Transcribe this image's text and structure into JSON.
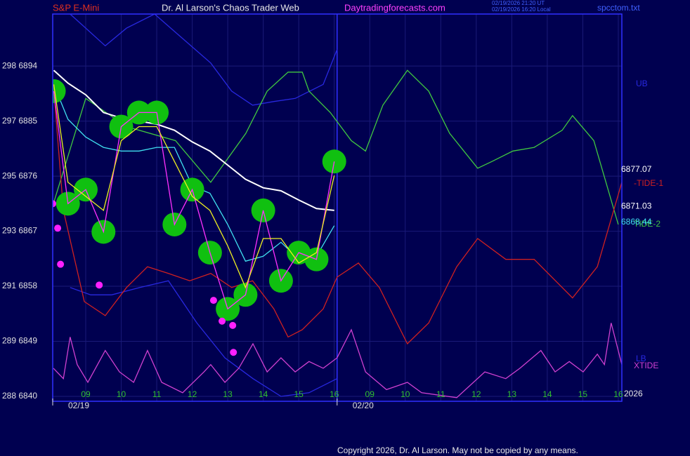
{
  "chart_data": {
    "type": "line",
    "header": {
      "symbol": "S&P E-Mini",
      "title": "Dr. Al Larson's Chaos Trader Web",
      "site": "Daytradingforecasts.com",
      "time_ut": "02/19/2026 21:20 UT",
      "time_local": "02/19/2026 16:20 Local",
      "file": "spcctom.txt"
    },
    "copyright": "Copyright 2026, Dr. Al Larson. May not be copied by any means.",
    "year_label": "2026",
    "xlim": [
      0.07,
      16.1
    ],
    "ylim": [
      6839.2,
      6902.5
    ],
    "grid": true,
    "yticks": [
      {
        "value": 6840,
        "label": "288 6840"
      },
      {
        "value": 6849,
        "label": "289 6849"
      },
      {
        "value": 6858,
        "label": "291 6858"
      },
      {
        "value": 6867,
        "label": "293 6867"
      },
      {
        "value": 6876,
        "label": "295 6876"
      },
      {
        "value": 6885,
        "label": "297 6885"
      },
      {
        "value": 6894,
        "label": "298 6894"
      }
    ],
    "xticks": [
      {
        "value": 1,
        "label": "09"
      },
      {
        "value": 2,
        "label": "10"
      },
      {
        "value": 3,
        "label": "11"
      },
      {
        "value": 4,
        "label": "12"
      },
      {
        "value": 5,
        "label": "13"
      },
      {
        "value": 6,
        "label": "14"
      },
      {
        "value": 7,
        "label": "15"
      },
      {
        "value": 8,
        "label": "16"
      },
      {
        "value": 9,
        "label": "09"
      },
      {
        "value": 10,
        "label": "10"
      },
      {
        "value": 11,
        "label": "11"
      },
      {
        "value": 12,
        "label": "12"
      },
      {
        "value": 13,
        "label": "13"
      },
      {
        "value": 14,
        "label": "14"
      },
      {
        "value": 15,
        "label": "15"
      },
      {
        "value": 16,
        "label": "16"
      }
    ],
    "date_ticks": [
      {
        "value": 0.07,
        "label": "02/19"
      },
      {
        "value": 8.08,
        "label": "02/20"
      }
    ],
    "series": [
      {
        "name": "UB",
        "color": "#2828e0",
        "x": [
          0.56,
          1.55,
          2.15,
          2.94,
          4.52,
          5.11,
          5.7,
          6.3,
          6.9,
          7.69,
          8.08
        ],
        "values": [
          6902.5,
          6897.3,
          6900.2,
          6902.5,
          6894.5,
          6889.9,
          6887.6,
          6888.2,
          6888.7,
          6891.0,
          6896.7
        ]
      },
      {
        "name": "LB",
        "color": "#2828e0",
        "x": [
          0.56,
          1.14,
          1.73,
          2.53,
          3.33,
          4.13,
          4.92,
          5.71,
          6.5,
          7.29,
          8.08
        ],
        "values": [
          6857.8,
          6856.6,
          6856.6,
          6857.8,
          6858.9,
          6852.0,
          6846.3,
          6842.9,
          6840.0,
          6840.6,
          6842.9
        ]
      },
      {
        "name": "TIDE-2",
        "color": "#40c840",
        "x": [
          0.09,
          1,
          2.15,
          3.53,
          4.52,
          5.51,
          6.11,
          6.7,
          7.1,
          7.29,
          7.89,
          8.48,
          8.88,
          9.37,
          10.06,
          10.66,
          11.25,
          12.04,
          12.44,
          13.03,
          13.63,
          14.42,
          14.71,
          15.31,
          16.0
        ],
        "values": [
          6871.5,
          6888.7,
          6884.1,
          6881.8,
          6875.0,
          6883.0,
          6889.9,
          6893.0,
          6893.0,
          6889.9,
          6886.4,
          6881.8,
          6880.1,
          6887.6,
          6893.3,
          6889.9,
          6883.0,
          6877.3,
          6878.4,
          6880.1,
          6880.7,
          6883.5,
          6885.9,
          6881.8,
          6868.1
        ]
      },
      {
        "name": "-TIDE-1",
        "color": "#d02020",
        "x": [
          0.09,
          0.37,
          0.96,
          1.55,
          2.15,
          2.74,
          3.33,
          3.93,
          4.52,
          5.11,
          5.7,
          6.3,
          6.7,
          7.1,
          7.69,
          8.08,
          8.68,
          9.27,
          10.06,
          10.66,
          11.45,
          12.04,
          12.83,
          13.63,
          14.42,
          14.71,
          15.41,
          16.1
        ],
        "values": [
          6891.0,
          6870.4,
          6855.5,
          6853.2,
          6857.8,
          6861.2,
          6860.1,
          6858.9,
          6860.1,
          6857.8,
          6858.9,
          6854.3,
          6849.7,
          6850.9,
          6854.3,
          6859.5,
          6861.8,
          6857.8,
          6848.6,
          6852.0,
          6861.2,
          6865.8,
          6862.4,
          6862.4,
          6857.8,
          6856.1,
          6861.2,
          6875.0
        ]
      },
      {
        "name": "XTIDE",
        "color": "#d040d0",
        "x": [
          0.09,
          0.37,
          0.56,
          0.76,
          1.06,
          1.55,
          1.95,
          2.35,
          2.74,
          3.14,
          3.73,
          4.33,
          4.52,
          4.92,
          5.31,
          5.71,
          6.11,
          6.5,
          6.9,
          7.29,
          7.69,
          8.08,
          8.48,
          8.88,
          9.47,
          10.06,
          10.46,
          11.45,
          12.24,
          12.83,
          13.23,
          13.82,
          14.22,
          14.62,
          15.01,
          15.41,
          15.61,
          15.8,
          16.1
        ],
        "values": [
          6844.6,
          6842.9,
          6849.7,
          6845.2,
          6842.3,
          6847.5,
          6844.0,
          6842.3,
          6847.5,
          6842.3,
          6840.6,
          6844.0,
          6845.2,
          6842.3,
          6844.6,
          6848.6,
          6844.0,
          6846.3,
          6844.0,
          6845.7,
          6844.6,
          6846.3,
          6850.9,
          6844.0,
          6841.1,
          6842.3,
          6840.6,
          6839.8,
          6844.0,
          6842.9,
          6844.6,
          6847.5,
          6844.0,
          6845.7,
          6844.0,
          6846.9,
          6845.2,
          6852.0,
          6845.2
        ]
      },
      {
        "color": "#ffffff",
        "last_value": 6871.03,
        "x": [
          0.1,
          0.5,
          1,
          1.5,
          2,
          2.5,
          3,
          3.5,
          4,
          4.5,
          5,
          5.5,
          6,
          6.5,
          7,
          7.5,
          8
        ],
        "values": [
          6893.3,
          6891.2,
          6889.3,
          6886.4,
          6885.5,
          6885.0,
          6884.5,
          6883.5,
          6881.6,
          6880.1,
          6877.8,
          6875.5,
          6874.1,
          6873.6,
          6872.1,
          6870.7,
          6870.4
        ]
      },
      {
        "color": "#40e0f0",
        "last_value": 6868.44,
        "x": [
          0.1,
          0.5,
          1,
          1.5,
          2,
          2.5,
          3,
          3.5,
          4,
          4.5,
          5,
          5.5,
          6,
          6.5,
          7,
          7.5,
          8
        ],
        "values": [
          6891.0,
          6885.3,
          6882.4,
          6880.7,
          6880.1,
          6880.1,
          6880.7,
          6880.7,
          6874.4,
          6873.2,
          6868.1,
          6862.1,
          6862.9,
          6865.2,
          6862.4,
          6862.9,
          6867.9
        ]
      },
      {
        "color": "#ff30ff",
        "glow": "#10c010",
        "last_value": 6877.07,
        "x": [
          0.1,
          0.5,
          1,
          1.5,
          2,
          2.5,
          3,
          3.5,
          4,
          4.5,
          5,
          5.5,
          6,
          6.5,
          7,
          7.5,
          8
        ],
        "values": [
          6889.9,
          6871.5,
          6873.8,
          6866.9,
          6884.1,
          6886.4,
          6886.4,
          6868.1,
          6873.8,
          6863.5,
          6854.3,
          6856.6,
          6870.4,
          6858.9,
          6863.5,
          6862.4,
          6878.4
        ]
      },
      {
        "color": "#f0f020",
        "x": [
          0.1,
          0.5,
          1,
          1.5,
          2,
          2.5,
          3,
          3.5,
          4,
          4.5,
          5,
          5.5,
          6,
          6.5,
          7,
          7.5,
          8
        ],
        "values": [
          6891.0,
          6875.0,
          6872.7,
          6870.4,
          6881.8,
          6884.1,
          6884.1,
          6878.4,
          6872.7,
          6870.4,
          6864.6,
          6857.8,
          6865.8,
          6865.8,
          6861.8,
          6863.5,
          6876.1
        ]
      }
    ],
    "pivots": {
      "color": "#ff20ff",
      "x": [
        0.07,
        0.21,
        0.29,
        1.38,
        4.6,
        4.84,
        5.14,
        5.16
      ],
      "values": [
        6871.5,
        6867.5,
        6861.6,
        6858.2,
        6855.7,
        6852.3,
        6851.6,
        6847.2
      ]
    }
  }
}
